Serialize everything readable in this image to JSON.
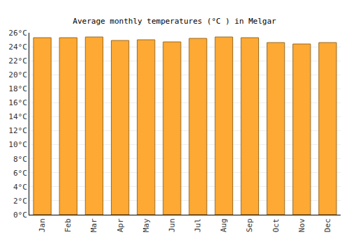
{
  "chart_data": {
    "type": "bar",
    "title": "Average monthly temperatures (°C ) in Melgar",
    "categories": [
      "Jan",
      "Feb",
      "Mar",
      "Apr",
      "May",
      "Jun",
      "Jul",
      "Aug",
      "Sep",
      "Oct",
      "Nov",
      "Dec"
    ],
    "values": [
      25.3,
      25.3,
      25.4,
      24.9,
      25.0,
      24.7,
      25.2,
      25.4,
      25.3,
      24.6,
      24.4,
      24.6
    ],
    "color": "#fda933",
    "ylim": [
      0,
      26
    ],
    "yticks": [
      {
        "value": 0,
        "label": "0°C"
      },
      {
        "value": 2,
        "label": "2°C"
      },
      {
        "value": 4,
        "label": "4°C"
      },
      {
        "value": 6,
        "label": "6°C"
      },
      {
        "value": 8,
        "label": "8°C"
      },
      {
        "value": 10,
        "label": "10°C"
      },
      {
        "value": 12,
        "label": "12°C"
      },
      {
        "value": 14,
        "label": "14°C"
      },
      {
        "value": 16,
        "label": "16°C"
      },
      {
        "value": 18,
        "label": "18°C"
      },
      {
        "value": 20,
        "label": "20°C"
      },
      {
        "value": 22,
        "label": "22°C"
      },
      {
        "value": 24,
        "label": "24°C"
      },
      {
        "value": 26,
        "label": "26°C"
      }
    ],
    "grid": true
  }
}
